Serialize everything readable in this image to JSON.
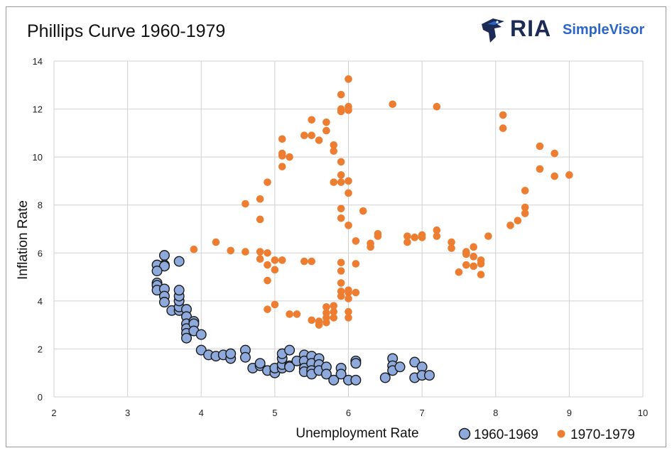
{
  "header": {
    "title": "Phillips Curve 1960-1979",
    "logo_main": "RIA",
    "logo_sub": "SimpleVisor",
    "logo_icon": "eagle-icon"
  },
  "colors": {
    "series_1960s_fill": "#8ea9db",
    "series_1960s_stroke": "#1a1a1a",
    "series_1970s": "#ed7d31",
    "grid": "#d0d0d0",
    "logo_dark": "#1b2b55",
    "logo_blue": "#2a66c9"
  },
  "chart_data": {
    "type": "scatter",
    "title": "Phillips Curve 1960-1979",
    "xlabel": "Unemployment Rate",
    "ylabel": "Inflation Rate",
    "xlim": [
      2,
      10
    ],
    "ylim": [
      0,
      14
    ],
    "xticks": [
      "2",
      "3",
      "4",
      "5",
      "6",
      "7",
      "8",
      "9",
      "10"
    ],
    "yticks": [
      "0",
      "2",
      "4",
      "6",
      "8",
      "10",
      "12",
      "14"
    ],
    "grid": true,
    "legend_position": "bottom-right",
    "series": [
      {
        "name": "1960-1969",
        "points": [
          [
            3.5,
            5.9
          ],
          [
            3.5,
            5.5
          ],
          [
            3.4,
            5.5
          ],
          [
            3.5,
            5.45
          ],
          [
            3.4,
            5.25
          ],
          [
            3.7,
            5.65
          ],
          [
            3.4,
            4.75
          ],
          [
            3.4,
            4.65
          ],
          [
            3.4,
            4.45
          ],
          [
            3.5,
            4.5
          ],
          [
            3.5,
            4.2
          ],
          [
            3.5,
            3.95
          ],
          [
            3.6,
            3.6
          ],
          [
            3.7,
            3.6
          ],
          [
            3.7,
            3.75
          ],
          [
            3.7,
            4.0
          ],
          [
            3.7,
            4.2
          ],
          [
            3.7,
            4.45
          ],
          [
            3.8,
            3.65
          ],
          [
            3.8,
            3.35
          ],
          [
            3.8,
            3.05
          ],
          [
            3.8,
            2.85
          ],
          [
            3.8,
            2.65
          ],
          [
            3.8,
            2.45
          ],
          [
            3.9,
            3.15
          ],
          [
            3.9,
            3.05
          ],
          [
            3.9,
            2.75
          ],
          [
            4.0,
            2.6
          ],
          [
            4.0,
            1.95
          ],
          [
            4.1,
            1.75
          ],
          [
            4.2,
            1.7
          ],
          [
            4.3,
            1.75
          ],
          [
            4.4,
            1.6
          ],
          [
            4.4,
            1.8
          ],
          [
            4.6,
            1.95
          ],
          [
            4.6,
            1.65
          ],
          [
            4.7,
            1.2
          ],
          [
            4.8,
            1.3
          ],
          [
            4.8,
            1.4
          ],
          [
            4.9,
            1.1
          ],
          [
            5.0,
            1.0
          ],
          [
            5.0,
            1.2
          ],
          [
            5.1,
            1.2
          ],
          [
            5.1,
            1.35
          ],
          [
            5.1,
            1.6
          ],
          [
            5.1,
            1.8
          ],
          [
            5.2,
            1.95
          ],
          [
            5.2,
            1.3
          ],
          [
            5.2,
            1.25
          ],
          [
            5.3,
            1.5
          ],
          [
            5.4,
            1.75
          ],
          [
            5.4,
            1.5
          ],
          [
            5.4,
            1.2
          ],
          [
            5.4,
            1.05
          ],
          [
            5.5,
            1.7
          ],
          [
            5.5,
            1.4
          ],
          [
            5.5,
            1.1
          ],
          [
            5.5,
            0.95
          ],
          [
            5.6,
            1.6
          ],
          [
            5.6,
            1.35
          ],
          [
            5.6,
            1.1
          ],
          [
            5.7,
            1.25
          ],
          [
            5.7,
            0.95
          ],
          [
            5.8,
            0.7
          ],
          [
            5.9,
            1.2
          ],
          [
            5.9,
            0.95
          ],
          [
            6.0,
            0.7
          ],
          [
            6.1,
            1.5
          ],
          [
            6.1,
            1.4
          ],
          [
            6.1,
            0.7
          ],
          [
            6.5,
            0.8
          ],
          [
            6.6,
            1.6
          ],
          [
            6.6,
            1.3
          ],
          [
            6.6,
            1.1
          ],
          [
            6.7,
            1.25
          ],
          [
            6.9,
            1.45
          ],
          [
            6.9,
            0.8
          ],
          [
            7.0,
            1.25
          ],
          [
            7.0,
            0.9
          ],
          [
            7.1,
            0.9
          ]
        ]
      },
      {
        "name": "1970-1979",
        "points": [
          [
            3.9,
            6.15
          ],
          [
            4.2,
            6.45
          ],
          [
            4.4,
            6.1
          ],
          [
            4.6,
            8.05
          ],
          [
            4.6,
            6.05
          ],
          [
            4.8,
            8.25
          ],
          [
            4.8,
            7.4
          ],
          [
            4.8,
            6.05
          ],
          [
            4.8,
            5.75
          ],
          [
            4.9,
            8.95
          ],
          [
            4.9,
            6.0
          ],
          [
            4.9,
            5.5
          ],
          [
            4.9,
            4.85
          ],
          [
            4.9,
            3.65
          ],
          [
            5.0,
            5.7
          ],
          [
            5.0,
            5.3
          ],
          [
            5.0,
            3.85
          ],
          [
            5.1,
            10.75
          ],
          [
            5.1,
            10.15
          ],
          [
            5.1,
            10.05
          ],
          [
            5.1,
            9.6
          ],
          [
            5.1,
            5.7
          ],
          [
            5.2,
            10.0
          ],
          [
            5.2,
            3.45
          ],
          [
            5.3,
            3.45
          ],
          [
            5.4,
            10.9
          ],
          [
            5.4,
            5.65
          ],
          [
            5.5,
            11.55
          ],
          [
            5.5,
            10.9
          ],
          [
            5.5,
            5.65
          ],
          [
            5.5,
            3.2
          ],
          [
            5.6,
            10.7
          ],
          [
            5.6,
            3.0
          ],
          [
            5.6,
            3.15
          ],
          [
            5.7,
            11.45
          ],
          [
            5.7,
            11.1
          ],
          [
            5.7,
            3.75
          ],
          [
            5.7,
            3.5
          ],
          [
            5.7,
            3.3
          ],
          [
            5.7,
            3.1
          ],
          [
            5.8,
            10.5
          ],
          [
            5.8,
            10.25
          ],
          [
            5.8,
            8.95
          ],
          [
            5.8,
            3.8
          ],
          [
            5.8,
            3.55
          ],
          [
            5.8,
            3.3
          ],
          [
            5.9,
            12.6
          ],
          [
            5.9,
            12.0
          ],
          [
            5.9,
            11.9
          ],
          [
            5.9,
            9.8
          ],
          [
            5.9,
            9.25
          ],
          [
            5.9,
            8.95
          ],
          [
            5.9,
            7.85
          ],
          [
            5.9,
            7.45
          ],
          [
            5.9,
            5.6
          ],
          [
            5.9,
            5.25
          ],
          [
            5.9,
            4.75
          ],
          [
            5.9,
            4.4
          ],
          [
            5.9,
            4.2
          ],
          [
            6.0,
            13.25
          ],
          [
            6.0,
            12.1
          ],
          [
            6.0,
            11.95
          ],
          [
            6.0,
            9.0
          ],
          [
            6.0,
            8.5
          ],
          [
            6.0,
            7.15
          ],
          [
            6.0,
            4.45
          ],
          [
            6.0,
            4.35
          ],
          [
            6.0,
            4.1
          ],
          [
            6.0,
            3.55
          ],
          [
            6.0,
            3.3
          ],
          [
            6.1,
            6.5
          ],
          [
            6.1,
            5.55
          ],
          [
            6.1,
            4.35
          ],
          [
            6.2,
            7.75
          ],
          [
            6.3,
            6.4
          ],
          [
            6.3,
            6.25
          ],
          [
            6.4,
            6.8
          ],
          [
            6.4,
            6.7
          ],
          [
            6.6,
            12.2
          ],
          [
            6.8,
            6.7
          ],
          [
            6.8,
            6.45
          ],
          [
            6.9,
            6.65
          ],
          [
            7.0,
            6.75
          ],
          [
            7.0,
            6.65
          ],
          [
            7.2,
            12.1
          ],
          [
            7.2,
            6.95
          ],
          [
            7.2,
            6.7
          ],
          [
            7.4,
            6.45
          ],
          [
            7.4,
            6.2
          ],
          [
            7.5,
            5.2
          ],
          [
            7.6,
            6.05
          ],
          [
            7.6,
            5.95
          ],
          [
            7.6,
            5.5
          ],
          [
            7.7,
            6.25
          ],
          [
            7.7,
            5.85
          ],
          [
            7.7,
            5.45
          ],
          [
            7.8,
            5.7
          ],
          [
            7.8,
            5.55
          ],
          [
            7.8,
            5.1
          ],
          [
            7.9,
            6.7
          ],
          [
            8.1,
            11.75
          ],
          [
            8.1,
            11.2
          ],
          [
            8.2,
            7.15
          ],
          [
            8.3,
            7.35
          ],
          [
            8.4,
            8.6
          ],
          [
            8.4,
            7.9
          ],
          [
            8.4,
            7.65
          ],
          [
            8.6,
            10.45
          ],
          [
            8.6,
            9.5
          ],
          [
            8.8,
            10.15
          ],
          [
            8.8,
            9.2
          ],
          [
            9.0,
            9.25
          ]
        ]
      }
    ]
  }
}
